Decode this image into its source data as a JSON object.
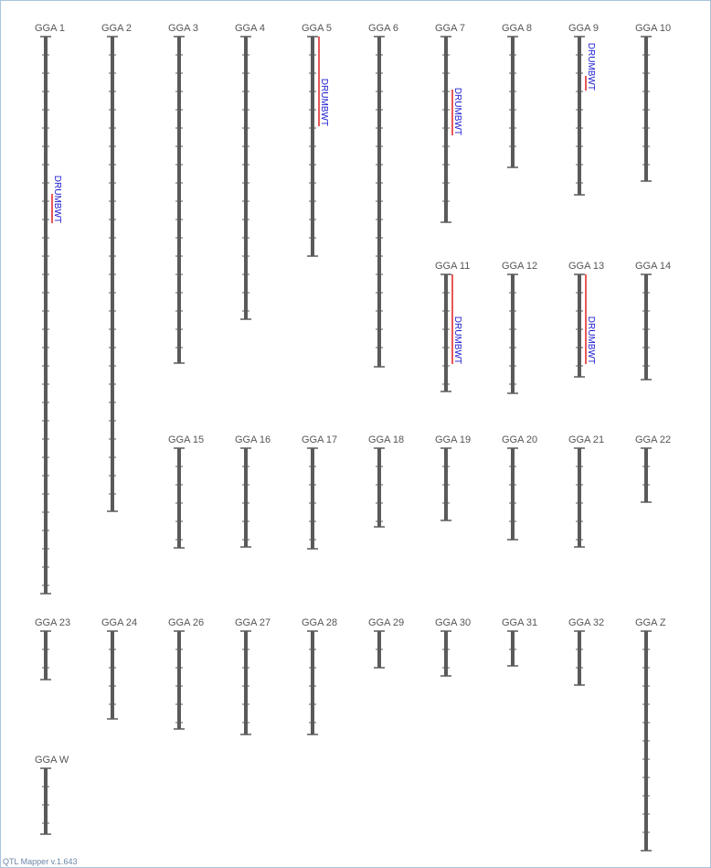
{
  "chromosomes": [
    {
      "label": "GGA 1",
      "qtl": [
        "DRUMBWT"
      ]
    },
    {
      "label": "GGA 2"
    },
    {
      "label": "GGA 3"
    },
    {
      "label": "GGA 4"
    },
    {
      "label": "GGA 5",
      "qtl": [
        "DRUMBWT"
      ]
    },
    {
      "label": "GGA 6"
    },
    {
      "label": "GGA 7",
      "qtl": [
        "DRUMBWT"
      ]
    },
    {
      "label": "GGA 8"
    },
    {
      "label": "GGA 9",
      "qtl": [
        "DRUMBWT"
      ]
    },
    {
      "label": "GGA 10"
    },
    {
      "label": "GGA 11",
      "qtl": [
        "DRUMBWT"
      ]
    },
    {
      "label": "GGA 12"
    },
    {
      "label": "GGA 13",
      "qtl": [
        "DRUMBWT"
      ]
    },
    {
      "label": "GGA 14"
    },
    {
      "label": "GGA 15"
    },
    {
      "label": "GGA 16"
    },
    {
      "label": "GGA 17"
    },
    {
      "label": "GGA 18"
    },
    {
      "label": "GGA 19"
    },
    {
      "label": "GGA 20"
    },
    {
      "label": "GGA 21"
    },
    {
      "label": "GGA 22"
    },
    {
      "label": "GGA 23"
    },
    {
      "label": "GGA 24"
    },
    {
      "label": "GGA 26"
    },
    {
      "label": "GGA 27"
    },
    {
      "label": "GGA 28"
    },
    {
      "label": "GGA 29"
    },
    {
      "label": "GGA 30"
    },
    {
      "label": "GGA 31"
    },
    {
      "label": "GGA 32"
    },
    {
      "label": "GGA Z"
    },
    {
      "label": "GGA W"
    }
  ],
  "footer": "QTL Mapper v.1.643"
}
